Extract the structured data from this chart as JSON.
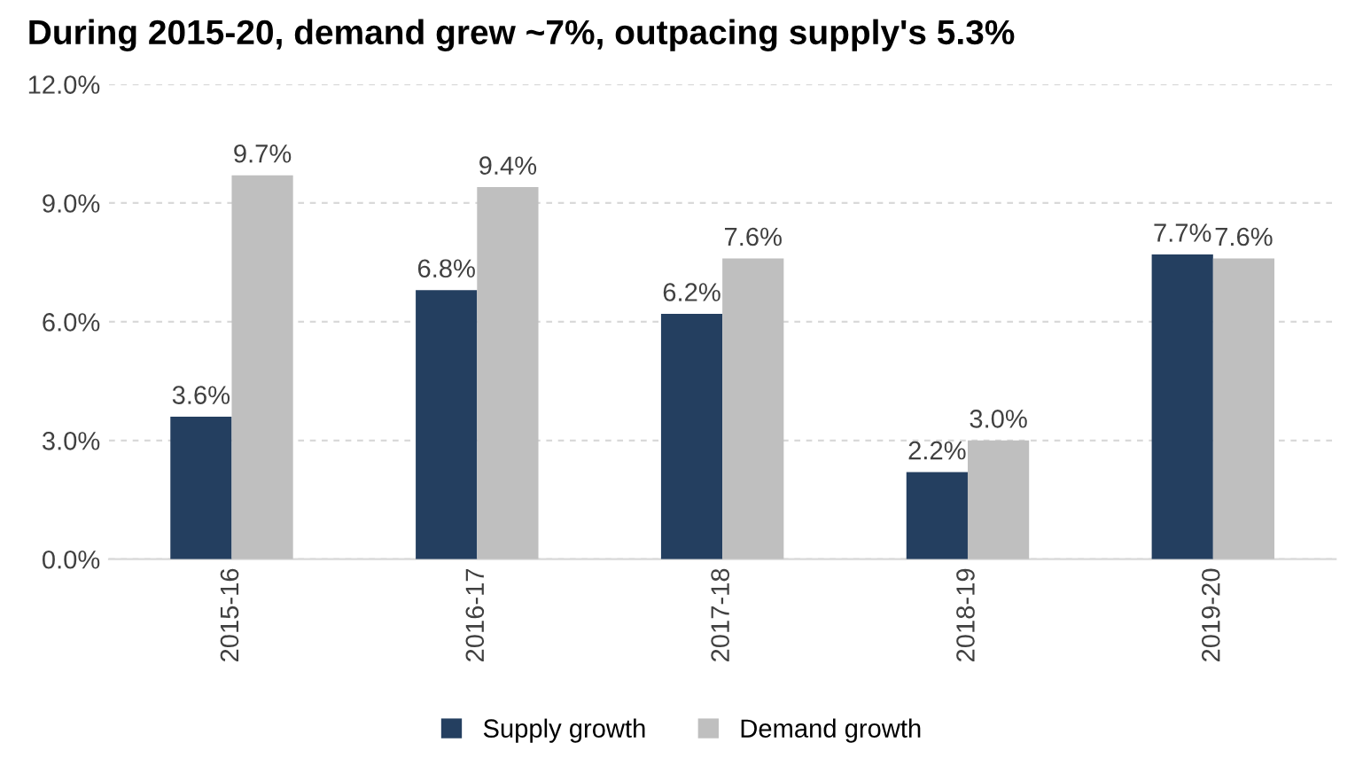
{
  "chart_data": {
    "type": "bar",
    "title": "During 2015-20, demand grew ~7%, outpacing supply's 5.3%",
    "categories": [
      "2015-16",
      "2016-17",
      "2017-18",
      "2018-19",
      "2019-20"
    ],
    "series": [
      {
        "name": "Supply growth",
        "color": "#243f60",
        "values": [
          3.6,
          6.8,
          6.2,
          2.2,
          7.7
        ],
        "value_labels": [
          "3.6%",
          "6.8%",
          "6.2%",
          "2.2%",
          "7.7%"
        ]
      },
      {
        "name": "Demand growth",
        "color": "#bfbfbf",
        "values": [
          9.7,
          9.4,
          7.6,
          3.0,
          7.6
        ],
        "value_labels": [
          "9.7%",
          "9.4%",
          "7.6%",
          "3.0%",
          "7.6%"
        ]
      }
    ],
    "ylim": [
      0,
      12
    ],
    "yticks": [
      {
        "value": 0,
        "label": "0.0%"
      },
      {
        "value": 3,
        "label": "3.0%"
      },
      {
        "value": 6,
        "label": "6.0%"
      },
      {
        "value": 9,
        "label": "9.0%"
      },
      {
        "value": 12,
        "label": "12.0%"
      }
    ],
    "grid": "y",
    "legend": "bottom"
  }
}
